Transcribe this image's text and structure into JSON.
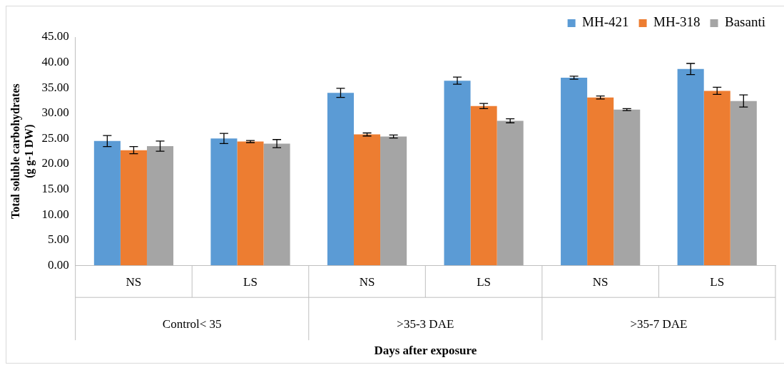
{
  "chart_data": {
    "type": "bar",
    "xlabel": "Days after exposure",
    "ylabel": "Total soluble carbohydrates\n(g g-1 DW)",
    "categories": [
      "NS",
      "LS",
      "NS",
      "LS",
      "NS",
      "LS"
    ],
    "annotations": [
      "Control< 35",
      ">35-3 DAE",
      ">35-7 DAE"
    ],
    "series": [
      {
        "name": "MH-421",
        "color": "#5b9bd5",
        "values": [
          24.5,
          25.0,
          34.0,
          36.4,
          37.0,
          38.7
        ],
        "errors": [
          1.1,
          1.0,
          0.9,
          0.7,
          0.3,
          1.1
        ]
      },
      {
        "name": "MH-318",
        "color": "#ed7d31",
        "values": [
          22.7,
          24.4,
          25.8,
          31.4,
          33.1,
          34.4
        ],
        "errors": [
          0.7,
          0.2,
          0.3,
          0.5,
          0.3,
          0.7
        ]
      },
      {
        "name": "Basanti",
        "color": "#a5a5a5",
        "values": [
          23.5,
          24.0,
          25.4,
          28.5,
          30.7,
          32.4
        ],
        "errors": [
          1.0,
          0.8,
          0.3,
          0.4,
          0.2,
          1.2
        ]
      }
    ],
    "ylim": [
      0,
      45
    ],
    "yticks": [
      {
        "value": 0,
        "label": "0.00"
      },
      {
        "value": 5,
        "label": "5.00"
      },
      {
        "value": 10,
        "label": "10.00"
      },
      {
        "value": 15,
        "label": "15.00"
      },
      {
        "value": 20,
        "label": "20.00"
      },
      {
        "value": 25,
        "label": "25.00"
      },
      {
        "value": 30,
        "label": "30.00"
      },
      {
        "value": 35,
        "label": "35.00"
      },
      {
        "value": 40,
        "label": "40.00"
      },
      {
        "value": 45,
        "label": "45.00"
      }
    ],
    "grid": false,
    "legend": "top right"
  }
}
